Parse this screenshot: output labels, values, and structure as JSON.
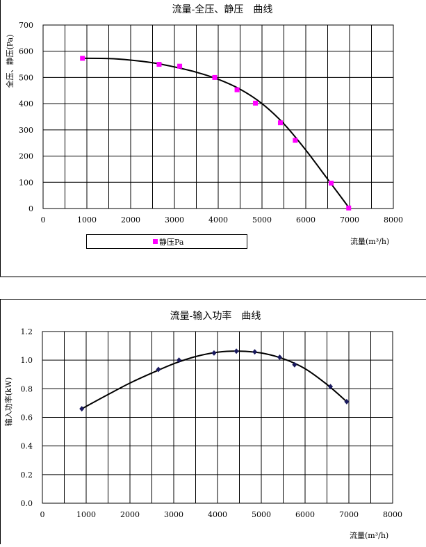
{
  "chart_data": [
    {
      "type": "line",
      "title": "流量-全压、静压　曲线",
      "xlabel": "流量(m³/h)",
      "ylabel": "全压、静压(Pa)",
      "xlim": [
        0,
        8000
      ],
      "ylim": [
        0,
        700
      ],
      "xticks": [
        "0",
        "1000",
        "2000",
        "3000",
        "4000",
        "5000",
        "6000",
        "7000",
        "8000"
      ],
      "yticks": [
        "0",
        "100",
        "200",
        "300",
        "400",
        "500",
        "600",
        "700"
      ],
      "grid": true,
      "legend_position": "bottom",
      "colors": {
        "marker": "#ff00ff",
        "curve": "#000000",
        "grid": "#000000"
      },
      "series": [
        {
          "name": "静压Pa",
          "x": [
            900,
            2650,
            3120,
            3920,
            4430,
            4850,
            5420,
            5760,
            6580,
            6980
          ],
          "y": [
            573,
            550,
            543,
            500,
            453,
            402,
            327,
            260,
            97,
            2
          ]
        }
      ],
      "fit_curve": {
        "x": [
          900,
          1500,
          2000,
          2500,
          3000,
          3500,
          4000,
          4500,
          5000,
          5500,
          6000,
          6500,
          6800,
          7000
        ],
        "y": [
          573,
          572,
          566,
          556,
          540,
          520,
          493,
          455,
          400,
          323,
          223,
          112,
          45,
          0
        ]
      }
    },
    {
      "type": "line",
      "title": "流量-输入功率　曲线",
      "xlabel": "流量(m³/h)",
      "ylabel": "输入功率(kW)",
      "xlim": [
        0,
        8000
      ],
      "ylim": [
        0,
        1.2
      ],
      "xticks": [
        "0",
        "1000",
        "2000",
        "3000",
        "4000",
        "5000",
        "6000",
        "7000",
        "8000"
      ],
      "yticks": [
        "0.0",
        "0.2",
        "0.4",
        "0.6",
        "0.8",
        "1.0",
        "1.2"
      ],
      "grid": true,
      "colors": {
        "marker": "#1a1a5e",
        "curve": "#000000",
        "grid": "#000000"
      },
      "series": [
        {
          "x": [
            900,
            2650,
            3120,
            3920,
            4430,
            4850,
            5420,
            5760,
            6580,
            6950
          ],
          "y": [
            0.66,
            0.935,
            1.0,
            1.05,
            1.063,
            1.058,
            1.02,
            0.968,
            0.815,
            0.71
          ]
        }
      ],
      "fit_curve": {
        "x": [
          900,
          1500,
          2000,
          2500,
          3000,
          3500,
          4000,
          4500,
          5000,
          5500,
          6000,
          6500,
          6950
        ],
        "y": [
          0.66,
          0.76,
          0.84,
          0.91,
          0.975,
          1.025,
          1.055,
          1.063,
          1.05,
          1.01,
          0.94,
          0.83,
          0.71
        ]
      }
    }
  ]
}
